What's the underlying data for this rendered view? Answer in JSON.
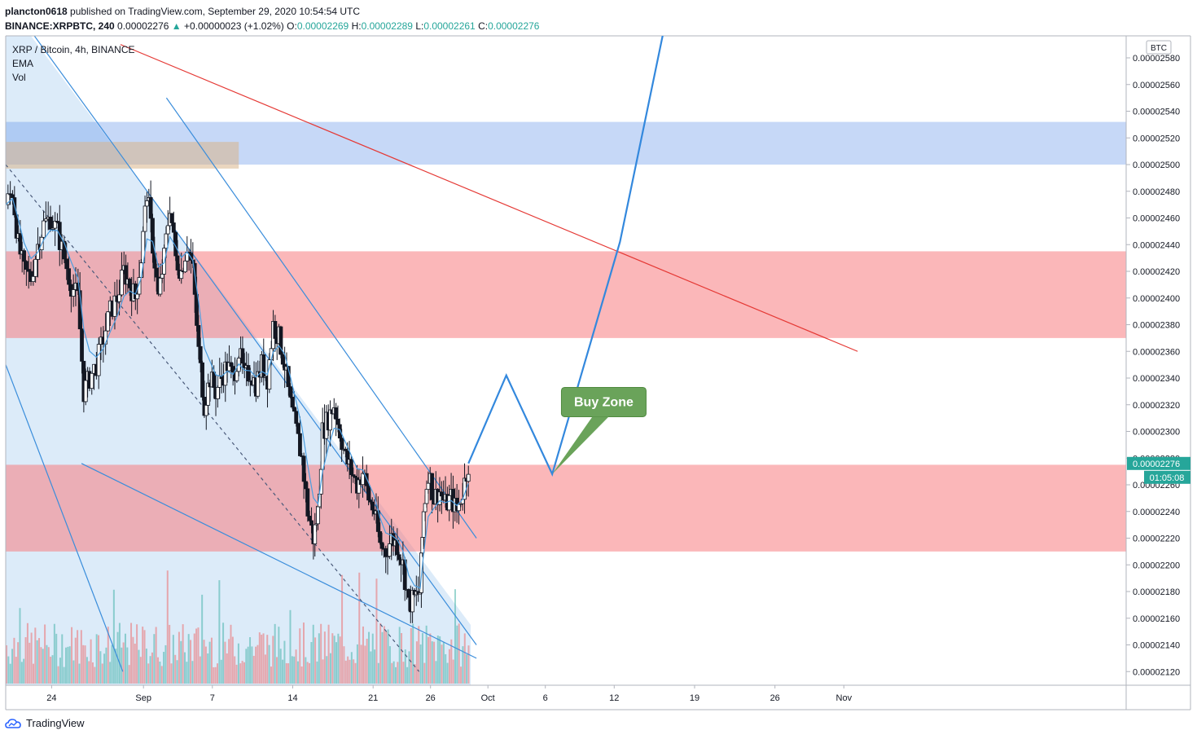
{
  "header": {
    "author": "plancton0618",
    "published_text": " published on TradingView.com, September 29, 2020 10:54:54 UTC",
    "symbol_line": "BINANCE:XRPBTC, 240",
    "last": "0.00002276",
    "change": "+0.00000023 (+1.02%)",
    "o_label": "O:",
    "o_value": "0.00002269",
    "h_label": "H:",
    "h_value": "0.00002289",
    "l_label": "L:",
    "l_value": "0.00002261",
    "c_label": "C:",
    "c_value": "0.00002276"
  },
  "legend": {
    "title": "XRP / Bitcoin, 4h, BINANCE",
    "ema": "EMA",
    "vol": "Vol"
  },
  "annotations": {
    "buy_zone": "Buy Zone",
    "currency": "BTC",
    "countdown": "01:05:08"
  },
  "footer": {
    "brand": "TradingView"
  },
  "colors": {
    "up": "#26a69a",
    "down": "#ef5350",
    "resistance_zone": "#f77c80",
    "blue_zone": "#5b8ee8",
    "channel_fill": "#d6e8f8",
    "projection": "#3388dd",
    "trend_red": "#e53935",
    "buy_zone_bg": "#6aa35a"
  },
  "chart_data": {
    "type": "candlestick",
    "symbol": "XRP / Bitcoin",
    "interval": "4h",
    "exchange": "BINANCE",
    "y_axis": {
      "range": [
        2.11e-05,
        2.59e-05
      ],
      "ticks": [
        "0.00002580",
        "0.00002560",
        "0.00002540",
        "0.00002520",
        "0.00002500",
        "0.00002480",
        "0.00002460",
        "0.00002440",
        "0.00002420",
        "0.00002400",
        "0.00002380",
        "0.00002360",
        "0.00002340",
        "0.00002320",
        "0.00002300",
        "0.00002280",
        "0.00002260",
        "0.00002240",
        "0.00002220",
        "0.00002200",
        "0.00002180",
        "0.00002160",
        "0.00002140",
        "0.00002120"
      ]
    },
    "x_axis": {
      "ticks": [
        {
          "label": "24",
          "day": 24
        },
        {
          "label": "Sep",
          "day": 32
        },
        {
          "label": "7",
          "day": 38
        },
        {
          "label": "14",
          "day": 45
        },
        {
          "label": "21",
          "day": 52
        },
        {
          "label": "26",
          "day": 57
        },
        {
          "label": "Oct",
          "day": 62
        },
        {
          "label": "6",
          "day": 67
        },
        {
          "label": "12",
          "day": 73
        },
        {
          "label": "19",
          "day": 80
        },
        {
          "label": "26",
          "day": 87
        },
        {
          "label": "Nov",
          "day": 93
        }
      ]
    },
    "last_price": 2.276e-05,
    "zones": [
      {
        "kind": "resistance",
        "from": 2.37e-05,
        "to": 2.435e-05
      },
      {
        "kind": "support",
        "from": 2.21e-05,
        "to": 2.275e-05
      },
      {
        "kind": "supply",
        "from": 2.5e-05,
        "to": 2.532e-05
      }
    ],
    "close_path": [
      {
        "day": 20.0,
        "price": 2.47e-05
      },
      {
        "day": 20.6,
        "price": 2.48e-05
      },
      {
        "day": 21.1,
        "price": 2.44e-05
      },
      {
        "day": 21.6,
        "price": 2.42e-05
      },
      {
        "day": 22.2,
        "price": 2.415e-05
      },
      {
        "day": 22.8,
        "price": 2.44e-05
      },
      {
        "day": 23.3,
        "price": 2.455e-05
      },
      {
        "day": 23.9,
        "price": 2.46e-05
      },
      {
        "day": 24.5,
        "price": 2.45e-05
      },
      {
        "day": 25.1,
        "price": 2.43e-05
      },
      {
        "day": 25.7,
        "price": 2.41e-05
      },
      {
        "day": 26.3,
        "price": 2.4e-05
      },
      {
        "day": 26.8,
        "price": 2.33e-05
      },
      {
        "day": 27.3,
        "price": 2.34e-05
      },
      {
        "day": 27.9,
        "price": 2.35e-05
      },
      {
        "day": 28.5,
        "price": 2.37e-05
      },
      {
        "day": 29.1,
        "price": 2.39e-05
      },
      {
        "day": 29.7,
        "price": 2.4e-05
      },
      {
        "day": 30.3,
        "price": 2.42e-05
      },
      {
        "day": 30.8,
        "price": 2.41e-05
      },
      {
        "day": 31.3,
        "price": 2.4e-05
      },
      {
        "day": 31.8,
        "price": 2.43e-05
      },
      {
        "day": 32.3,
        "price": 2.48e-05
      },
      {
        "day": 32.8,
        "price": 2.44e-05
      },
      {
        "day": 33.3,
        "price": 2.4e-05
      },
      {
        "day": 33.8,
        "price": 2.43e-05
      },
      {
        "day": 34.3,
        "price": 2.47e-05
      },
      {
        "day": 34.8,
        "price": 2.43e-05
      },
      {
        "day": 35.3,
        "price": 2.42e-05
      },
      {
        "day": 35.8,
        "price": 2.44e-05
      },
      {
        "day": 36.3,
        "price": 2.42e-05
      },
      {
        "day": 36.8,
        "price": 2.36e-05
      },
      {
        "day": 37.3,
        "price": 2.32e-05
      },
      {
        "day": 37.8,
        "price": 2.34e-05
      },
      {
        "day": 38.3,
        "price": 2.33e-05
      },
      {
        "day": 38.8,
        "price": 2.34e-05
      },
      {
        "day": 39.3,
        "price": 2.35e-05
      },
      {
        "day": 39.8,
        "price": 2.34e-05
      },
      {
        "day": 40.3,
        "price": 2.36e-05
      },
      {
        "day": 40.8,
        "price": 2.34e-05
      },
      {
        "day": 41.3,
        "price": 2.345e-05
      },
      {
        "day": 41.8,
        "price": 2.335e-05
      },
      {
        "day": 42.3,
        "price": 2.35e-05
      },
      {
        "day": 42.8,
        "price": 2.34e-05
      },
      {
        "day": 43.3,
        "price": 2.38e-05
      },
      {
        "day": 43.8,
        "price": 2.37e-05
      },
      {
        "day": 44.3,
        "price": 2.35e-05
      },
      {
        "day": 44.8,
        "price": 2.32e-05
      },
      {
        "day": 45.3,
        "price": 2.3e-05
      },
      {
        "day": 45.8,
        "price": 2.28e-05
      },
      {
        "day": 46.3,
        "price": 2.24e-05
      },
      {
        "day": 46.8,
        "price": 2.22e-05
      },
      {
        "day": 47.2,
        "price": 2.24e-05
      },
      {
        "day": 47.6,
        "price": 2.3e-05
      },
      {
        "day": 48.1,
        "price": 2.31e-05
      },
      {
        "day": 48.6,
        "price": 2.32e-05
      },
      {
        "day": 49.1,
        "price": 2.3e-05
      },
      {
        "day": 49.6,
        "price": 2.28e-05
      },
      {
        "day": 50.1,
        "price": 2.27e-05
      },
      {
        "day": 50.6,
        "price": 2.26e-05
      },
      {
        "day": 51.1,
        "price": 2.27e-05
      },
      {
        "day": 51.6,
        "price": 2.25e-05
      },
      {
        "day": 52.1,
        "price": 2.24e-05
      },
      {
        "day": 52.6,
        "price": 2.215e-05
      },
      {
        "day": 53.1,
        "price": 2.21e-05
      },
      {
        "day": 53.6,
        "price": 2.22e-05
      },
      {
        "day": 54.1,
        "price": 2.215e-05
      },
      {
        "day": 54.6,
        "price": 2.2e-05
      },
      {
        "day": 55.1,
        "price": 2.17e-05
      },
      {
        "day": 55.6,
        "price": 2.175e-05
      },
      {
        "day": 56.1,
        "price": 2.18e-05
      },
      {
        "day": 56.4,
        "price": 2.24e-05
      },
      {
        "day": 56.8,
        "price": 2.27e-05
      },
      {
        "day": 57.3,
        "price": 2.25e-05
      },
      {
        "day": 57.8,
        "price": 2.255e-05
      },
      {
        "day": 58.3,
        "price": 2.245e-05
      },
      {
        "day": 58.8,
        "price": 2.25e-05
      },
      {
        "day": 59.3,
        "price": 2.24e-05
      },
      {
        "day": 59.8,
        "price": 2.255e-05
      },
      {
        "day": 60.3,
        "price": 2.276e-05
      }
    ],
    "projection_path": [
      {
        "day": 60.3,
        "price": 2.276e-05
      },
      {
        "day": 63.6,
        "price": 2.342e-05
      },
      {
        "day": 67.6,
        "price": 2.268e-05
      },
      {
        "day": 73.5,
        "price": 2.442e-05
      },
      {
        "day": 77.3,
        "price": 2.6e-05
      }
    ],
    "trendlines": [
      {
        "kind": "channel-upper",
        "from": {
          "day": 22.2,
          "price": 2.6e-05
        },
        "to": {
          "day": 61.0,
          "price": 2.14e-05
        }
      },
      {
        "kind": "channel-lower",
        "from": {
          "day": 26.6,
          "price": 2.276e-05
        },
        "to": {
          "day": 61.0,
          "price": 2.13e-05
        }
      },
      {
        "kind": "steep-upper",
        "from": {
          "day": 34.0,
          "price": 2.55e-05
        },
        "to": {
          "day": 61.0,
          "price": 2.22e-05
        }
      },
      {
        "kind": "steep-lower",
        "from": {
          "day": 20.0,
          "price": 2.35e-05
        },
        "to": {
          "day": 30.2,
          "price": 2.12e-05
        }
      },
      {
        "kind": "red-long",
        "from": {
          "day": 30.0,
          "price": 2.59e-05
        },
        "to": {
          "day": 94.2,
          "price": 2.36e-05
        }
      },
      {
        "kind": "dashed-mid",
        "from": {
          "day": 20.0,
          "price": 2.5e-05
        },
        "to": {
          "day": 56.0,
          "price": 2.12e-05
        }
      }
    ]
  }
}
